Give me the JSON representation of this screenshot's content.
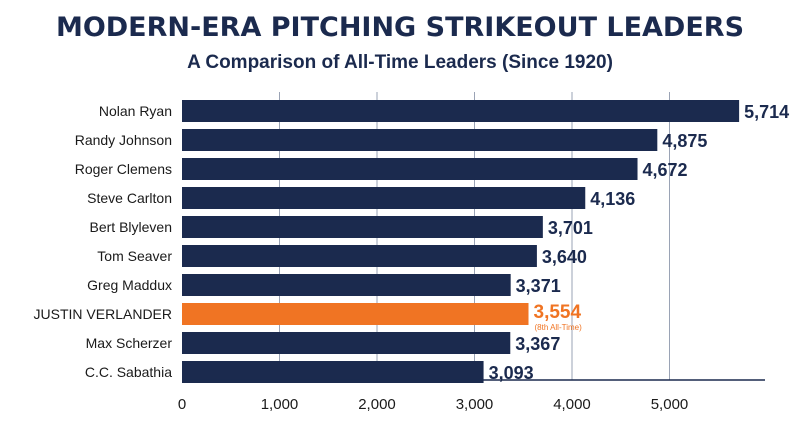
{
  "title": "MODERN-ERA PITCHING STRIKEOUT LEADERS",
  "subtitle": "A Comparison of All-Time Leaders (Since 1920)",
  "colors": {
    "bar": "#1b2a4e",
    "highlight": "#f07423",
    "grid": "#9aa3b5",
    "text": "#1b2a4e",
    "label_text": "#1a1a1a"
  },
  "chart_data": {
    "type": "bar",
    "orientation": "horizontal",
    "categories": [
      "Nolan Ryan",
      "Randy Johnson",
      "Roger Clemens",
      "Steve Carlton",
      "Bert Blyleven",
      "Tom Seaver",
      "Greg Maddux",
      "JUSTIN VERLANDER",
      "Max Scherzer",
      "C.C. Sabathia"
    ],
    "values": [
      5714,
      4875,
      4672,
      4136,
      3701,
      3640,
      3371,
      3554,
      3367,
      3093
    ],
    "value_labels": [
      "5,714",
      "4,875",
      "4,672",
      "4,136",
      "3,701",
      "3,640",
      "3,371",
      "3,554",
      "3,367",
      "3,093"
    ],
    "highlight_index": 7,
    "highlight_annotation": "(8th All-Time)",
    "xlim": [
      0,
      6000
    ],
    "xticks": [
      0,
      1000,
      2000,
      3000,
      4000,
      5000
    ],
    "xtick_labels": [
      "0",
      "1,000",
      "2,000",
      "3,000",
      "4,000",
      "5,000"
    ],
    "grid": true,
    "xlabel": "",
    "ylabel": ""
  }
}
